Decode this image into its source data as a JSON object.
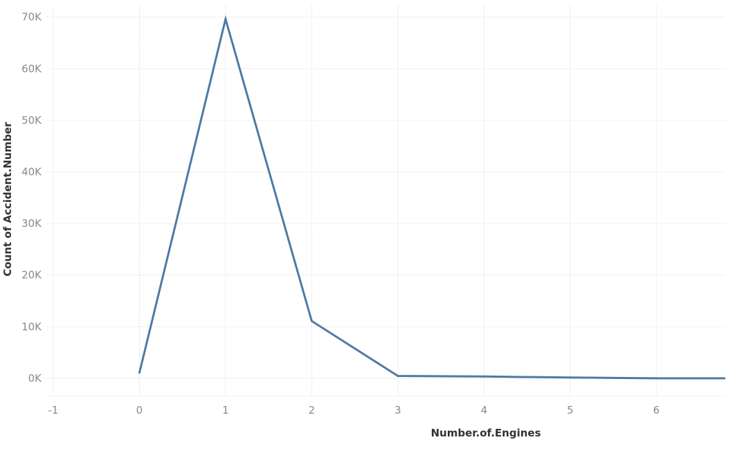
{
  "chart_data": {
    "type": "line",
    "title": "",
    "xlabel": "Number.of.Engines",
    "ylabel": "Count of Accident.Number",
    "x_ticks": [
      "-1",
      "0",
      "1",
      "2",
      "3",
      "4",
      "5",
      "6"
    ],
    "y_ticks": [
      "0K",
      "10K",
      "20K",
      "30K",
      "40K",
      "50K",
      "60K",
      "70K"
    ],
    "xlim": [
      -1.08,
      6.8
    ],
    "ylim": [
      -3500,
      72500
    ],
    "grid": true,
    "legend": "none",
    "series": [
      {
        "x": [
          0,
          1,
          2,
          3,
          4,
          5,
          6,
          8
        ],
        "values": [
          1100,
          69600,
          11100,
          450,
          350,
          150,
          5,
          0
        ]
      }
    ],
    "colors": {
      "line": "#4e79a7",
      "grid": "#f0f0f0",
      "zero_line": "#cccccc",
      "tick_text": "#8a8a8a",
      "axis_title": "#333333"
    }
  }
}
